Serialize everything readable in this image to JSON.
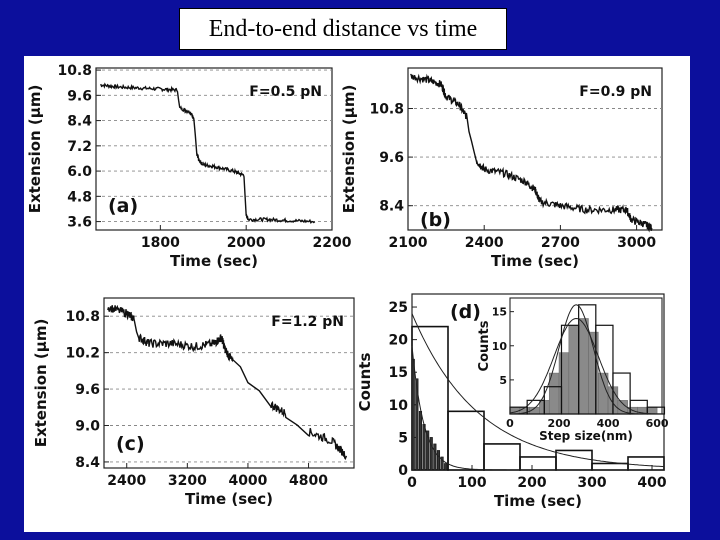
{
  "slide": {
    "title": "End-to-end distance vs time"
  },
  "chart_data": [
    {
      "panel": "(a)",
      "type": "line",
      "annotation": "F=0.5 pN",
      "xlabel": "Time (sec)",
      "ylabel": "Extension (μm)",
      "xlim": [
        1650,
        2200
      ],
      "ylim": [
        3.2,
        10.9
      ],
      "xticks": [
        1800,
        2000,
        2200
      ],
      "yticks": [
        3.6,
        4.8,
        6.0,
        7.2,
        8.4,
        9.6,
        10.8
      ],
      "ytick_labels": [
        "3.6",
        "4.8",
        "6.0",
        "7.2",
        "8.4",
        "9.6",
        "10.8"
      ],
      "grid": "horizontal dashed",
      "series": [
        {
          "x": [
            1660,
            1700,
            1750,
            1800,
            1840,
            1845,
            1870,
            1878,
            1885,
            1890,
            1900,
            1930,
            1970,
            1995,
            2000,
            2005,
            2050,
            2100,
            2160
          ],
          "y": [
            10.1,
            10.0,
            9.95,
            9.9,
            9.85,
            9.0,
            8.8,
            8.5,
            6.8,
            6.5,
            6.3,
            6.2,
            6.0,
            5.8,
            3.9,
            3.7,
            3.7,
            3.65,
            3.6
          ]
        }
      ]
    },
    {
      "panel": "(b)",
      "type": "line",
      "annotation": "F=0.9 pN",
      "xlabel": "Time (sec)",
      "ylabel": "Extension (μm)",
      "xlim": [
        2100,
        3100
      ],
      "ylim": [
        7.8,
        11.8
      ],
      "xticks": [
        2100,
        2400,
        2700,
        3000
      ],
      "yticks": [
        8.4,
        9.6,
        10.8
      ],
      "ytick_labels": [
        "8.4",
        "9.6",
        "10.8"
      ],
      "grid": "horizontal dashed",
      "series": [
        {
          "x": [
            2110,
            2180,
            2230,
            2250,
            2300,
            2330,
            2350,
            2370,
            2400,
            2480,
            2560,
            2600,
            2620,
            2700,
            2800,
            2900,
            2960,
            2980,
            3030,
            3060
          ],
          "y": [
            11.6,
            11.5,
            11.4,
            11.1,
            10.9,
            10.6,
            10.0,
            9.5,
            9.3,
            9.2,
            9.0,
            8.8,
            8.5,
            8.4,
            8.3,
            8.3,
            8.3,
            8.05,
            7.95,
            7.85
          ]
        }
      ]
    },
    {
      "panel": "(c)",
      "type": "line",
      "annotation": "F=1.2 pN",
      "xlabel": "Time (sec)",
      "ylabel": "Extension (μm)",
      "xlim": [
        2100,
        5400
      ],
      "ylim": [
        8.3,
        11.1
      ],
      "xticks": [
        2400,
        3200,
        4000,
        4800
      ],
      "yticks": [
        8.4,
        9.0,
        9.6,
        10.2,
        10.8
      ],
      "ytick_labels": [
        "8.4",
        "9.0",
        "9.6",
        "10.2",
        "10.8"
      ],
      "grid": "horizontal dashed",
      "series": [
        {
          "x": [
            2150,
            2400,
            2500,
            2560,
            2700,
            3000,
            3300,
            3550,
            3650,
            3700,
            3800,
            4000,
            4300,
            4500,
            4800,
            5100,
            5300
          ],
          "y": [
            10.95,
            10.85,
            10.75,
            10.45,
            10.35,
            10.35,
            10.3,
            10.35,
            10.45,
            10.25,
            10.05,
            9.75,
            9.35,
            9.2,
            8.9,
            8.75,
            8.5
          ]
        }
      ]
    },
    {
      "panel": "(d)",
      "type": "bar",
      "xlabel": "Time (sec)",
      "ylabel": "Counts",
      "xlim": [
        0,
        420
      ],
      "ylim": [
        0,
        27
      ],
      "xticks": [
        0,
        100,
        200,
        300,
        400
      ],
      "yticks": [
        0,
        5,
        10,
        15,
        20,
        25
      ],
      "series": [
        {
          "name": "open bins",
          "bin_edges": [
            0,
            60,
            120,
            180,
            240,
            300,
            360,
            420
          ],
          "values": [
            22,
            9,
            4,
            2,
            3,
            1,
            2
          ]
        },
        {
          "name": "filled bins",
          "bin_edges": [
            0,
            6,
            12,
            18,
            24,
            30,
            36,
            42,
            48,
            54,
            60
          ],
          "values": [
            17,
            14,
            9,
            7,
            6,
            5,
            4,
            3,
            2,
            1
          ]
        }
      ],
      "fits": [
        {
          "form": "exponential",
          "amplitude": 24,
          "tau": 110
        },
        {
          "form": "exponential",
          "amplitude": 19,
          "tau": 20
        }
      ],
      "inset": {
        "type": "bar",
        "xlabel": "Step size(nm)",
        "ylabel": "Counts",
        "xlim": [
          0,
          620
        ],
        "ylim": [
          0,
          17
        ],
        "xticks": [
          0,
          200,
          400,
          600
        ],
        "yticks": [
          5,
          10,
          15
        ],
        "series": [
          {
            "name": "filled bins",
            "bin_edges": [
              0,
              40,
              80,
              120,
              160,
              200,
              240,
              280,
              320,
              360,
              400,
              440,
              480,
              520,
              560,
              600
            ],
            "values": [
              1,
              1,
              1,
              2,
              6,
              9,
              13,
              14,
              12,
              6,
              4,
              2,
              1,
              1,
              1
            ]
          },
          {
            "name": "open bins",
            "bin_edges": [
              0,
              70,
              140,
              210,
              280,
              350,
              420,
              490,
              560,
              630
            ],
            "values": [
              1,
              2,
              4,
              13,
              16,
              13,
              6,
              2,
              1
            ]
          }
        ],
        "fits": [
          {
            "form": "gaussian",
            "amplitude": 16,
            "mean": 270,
            "sigma": 70
          },
          {
            "form": "gaussian",
            "amplitude": 14,
            "mean": 270,
            "sigma": 90
          }
        ]
      }
    }
  ]
}
